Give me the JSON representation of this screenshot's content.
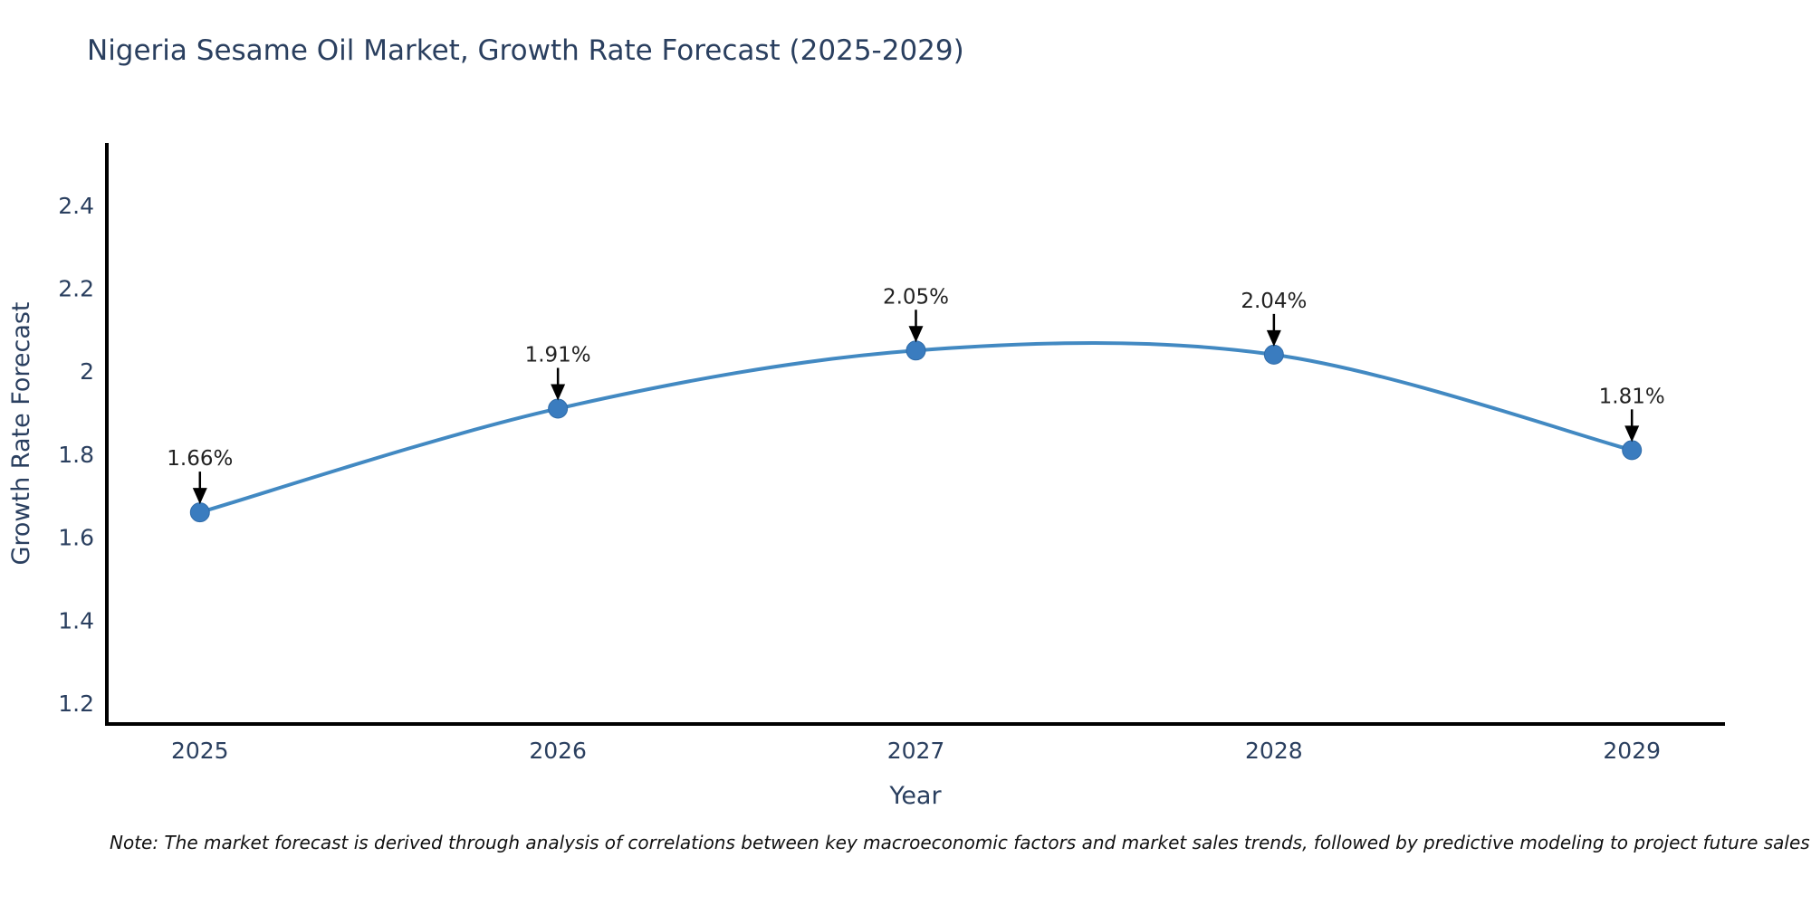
{
  "note": "Note: The market forecast is derived through analysis of correlations between key macroeconomic factors and market sales trends, followed by predictive modeling to project future sales",
  "chart_data": {
    "type": "line",
    "title": "Nigeria Sesame Oil Market, Growth Rate Forecast (2025-2029)",
    "xlabel": "Year",
    "ylabel": "Growth Rate Forecast",
    "x": [
      2025,
      2026,
      2027,
      2028,
      2029
    ],
    "xtick_labels": [
      "2025",
      "2026",
      "2027",
      "2028",
      "2029"
    ],
    "series": [
      {
        "name": "Growth Rate Forecast",
        "values": [
          1.66,
          1.91,
          2.05,
          2.04,
          1.81
        ]
      }
    ],
    "point_labels": [
      "1.66%",
      "1.91%",
      "2.05%",
      "2.04%",
      "1.81%"
    ],
    "ytick_values": [
      1.2,
      1.4,
      1.6,
      1.8,
      2,
      2.2,
      2.4
    ],
    "ytick_labels": [
      "1.2",
      "1.4",
      "1.6",
      "1.8",
      "2",
      "2.2",
      "2.4"
    ],
    "xlim": [
      2024.74,
      2029.26
    ],
    "ylim": [
      1.15,
      2.55
    ],
    "grid": false,
    "legend": "none",
    "smooth": true,
    "colors": {
      "line": "#4289c2",
      "marker": "#3a7cbf",
      "marker_edge": "#2f6ba8",
      "axis": "#000000",
      "label_text": "#2a3f5f",
      "annotation_text": "#222222",
      "arrow": "#000000"
    }
  }
}
